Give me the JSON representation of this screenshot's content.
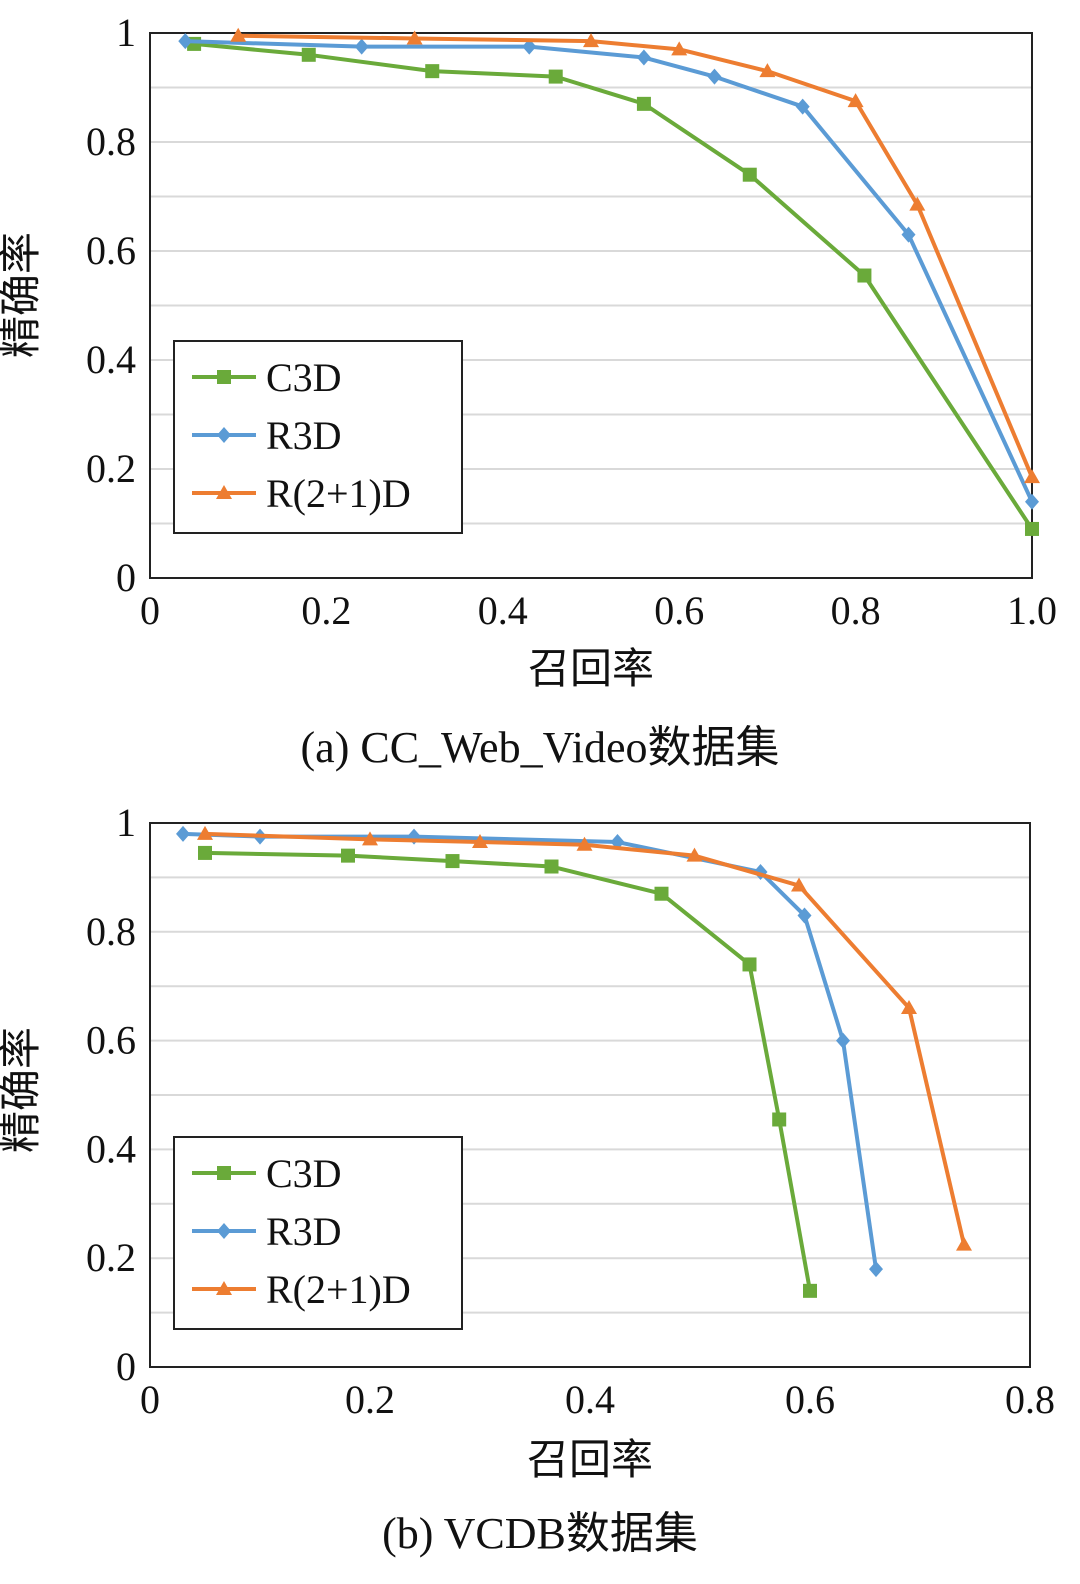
{
  "colors": {
    "c3d": "#6aaa3a",
    "r3d": "#5b9bd5",
    "r21d": "#ed7d31",
    "grid": "#d9d9d9",
    "frame": "#222222"
  },
  "chart_data": [
    {
      "type": "line",
      "caption": "(a)  CC_Web_Video数据集",
      "xlabel": "召回率",
      "ylabel": "精确率",
      "xlim": [
        0,
        1.0
      ],
      "ylim": [
        0,
        1
      ],
      "xticks": [
        0,
        0.2,
        0.4,
        0.6,
        0.8,
        1.0
      ],
      "xtick_labels": [
        "0",
        "0.2",
        "0.4",
        "0.6",
        "0.8",
        "1.0"
      ],
      "yticks": [
        0,
        0.2,
        0.4,
        0.6,
        0.8,
        1
      ],
      "ytick_labels": [
        "0",
        "0.2",
        "0.4",
        "0.6",
        "0.8",
        "1"
      ],
      "grid": "horizontal",
      "legend_position": "lower-left",
      "series": [
        {
          "name": "C3D",
          "marker": "square",
          "color": "#6aaa3a",
          "x": [
            0.05,
            0.18,
            0.32,
            0.46,
            0.56,
            0.68,
            0.81,
            1.0
          ],
          "y": [
            0.98,
            0.96,
            0.93,
            0.92,
            0.87,
            0.74,
            0.555,
            0.09
          ]
        },
        {
          "name": "R3D",
          "marker": "diamond",
          "color": "#5b9bd5",
          "x": [
            0.04,
            0.24,
            0.43,
            0.56,
            0.64,
            0.74,
            0.86,
            1.0
          ],
          "y": [
            0.985,
            0.975,
            0.975,
            0.955,
            0.92,
            0.865,
            0.63,
            0.14
          ]
        },
        {
          "name": "R(2+1)D",
          "marker": "triangle",
          "color": "#ed7d31",
          "x": [
            0.1,
            0.3,
            0.5,
            0.6,
            0.7,
            0.8,
            0.87,
            1.0
          ],
          "y": [
            0.995,
            0.99,
            0.985,
            0.97,
            0.93,
            0.875,
            0.685,
            0.185
          ]
        }
      ]
    },
    {
      "type": "line",
      "caption": "(b)  VCDB数据集",
      "xlabel": "召回率",
      "ylabel": "精确率",
      "xlim": [
        0,
        0.8
      ],
      "ylim": [
        0,
        1
      ],
      "xticks": [
        0,
        0.2,
        0.4,
        0.6,
        0.8
      ],
      "xtick_labels": [
        "0",
        "0.2",
        "0.4",
        "0.6",
        "0.8"
      ],
      "yticks": [
        0,
        0.2,
        0.4,
        0.6,
        0.8,
        1
      ],
      "ytick_labels": [
        "0",
        "0.2",
        "0.4",
        "0.6",
        "0.8",
        "1"
      ],
      "grid": "horizontal",
      "legend_position": "lower-left",
      "series": [
        {
          "name": "C3D",
          "marker": "square",
          "color": "#6aaa3a",
          "x": [
            0.05,
            0.18,
            0.275,
            0.365,
            0.465,
            0.545,
            0.572,
            0.6
          ],
          "y": [
            0.945,
            0.94,
            0.93,
            0.92,
            0.87,
            0.74,
            0.455,
            0.14
          ]
        },
        {
          "name": "R3D",
          "marker": "diamond",
          "color": "#5b9bd5",
          "x": [
            0.03,
            0.1,
            0.24,
            0.425,
            0.555,
            0.595,
            0.63,
            0.66
          ],
          "y": [
            0.98,
            0.975,
            0.975,
            0.965,
            0.91,
            0.83,
            0.6,
            0.18
          ]
        },
        {
          "name": "R(2+1)D",
          "marker": "triangle",
          "color": "#ed7d31",
          "x": [
            0.05,
            0.2,
            0.3,
            0.395,
            0.495,
            0.59,
            0.69,
            0.74
          ],
          "y": [
            0.98,
            0.97,
            0.965,
            0.96,
            0.94,
            0.885,
            0.66,
            0.225
          ]
        }
      ]
    }
  ]
}
